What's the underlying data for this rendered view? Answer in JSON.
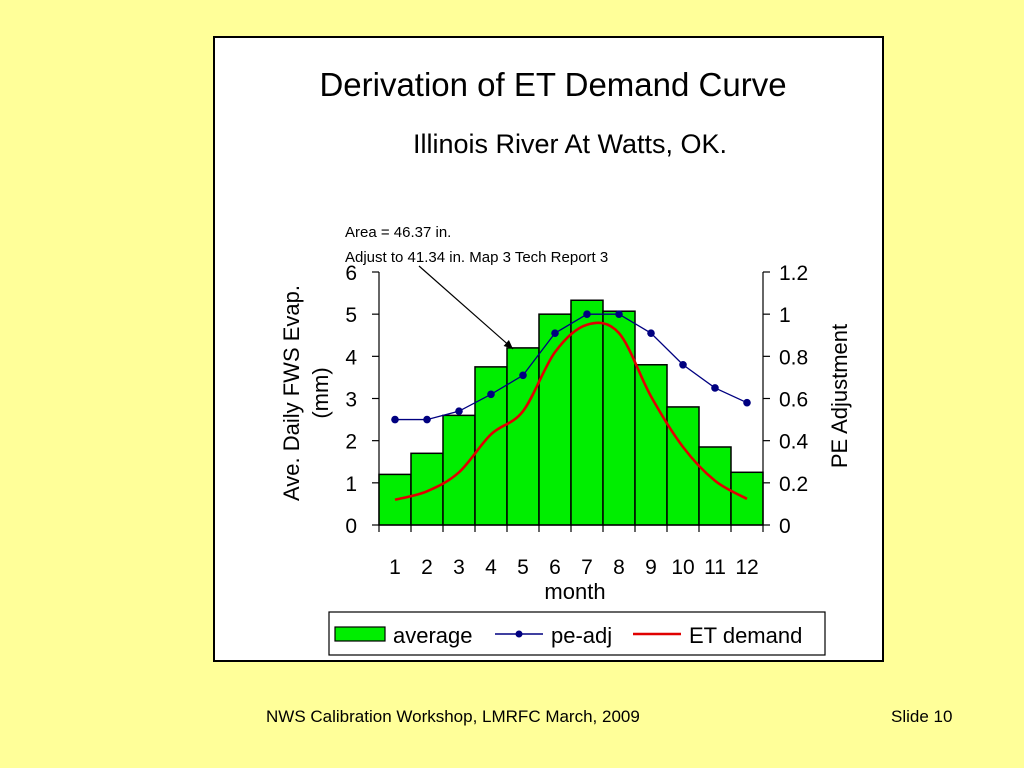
{
  "slide": {
    "footer_left": "NWS Calibration Workshop, LMRFC March, 2009",
    "footer_right": "Slide 10"
  },
  "colors": {
    "background": "#ffff99",
    "bar_fill": "#00ee00",
    "pe_line": "#000080",
    "et_line": "#e00000"
  },
  "chart_data": {
    "type": "bar",
    "title": "Derivation of ET Demand Curve",
    "subtitle": "Illinois River At Watts, OK.",
    "annotation": {
      "line1": "Area = 46.37 in.",
      "line2": "Adjust to 41.34 in. Map 3 Tech Report 3",
      "points_to_month": 5
    },
    "categories": [
      "1",
      "2",
      "3",
      "4",
      "5",
      "6",
      "7",
      "8",
      "9",
      "10",
      "11",
      "12"
    ],
    "xlabel": "month",
    "ylabel_line1": "Ave. Daily FWS Evap.",
    "ylabel_line2": "(mm)",
    "ylabel_right": "PE Adjustment",
    "ylim": [
      0,
      6
    ],
    "yticks": [
      "0",
      "1",
      "2",
      "3",
      "4",
      "5",
      "6"
    ],
    "ylim_right": [
      0,
      1.2
    ],
    "yticks_right": [
      "0",
      "0.2",
      "0.4",
      "0.6",
      "0.8",
      "1",
      "1.2"
    ],
    "series": [
      {
        "name": "average",
        "kind": "bar",
        "axis": "left",
        "values": [
          1.2,
          1.7,
          2.6,
          3.75,
          4.2,
          5.0,
          5.33,
          5.07,
          3.8,
          2.8,
          1.85,
          1.25
        ]
      },
      {
        "name": "pe-adj",
        "kind": "line-marker",
        "axis": "right",
        "values": [
          0.5,
          0.5,
          0.54,
          0.62,
          0.71,
          0.91,
          1.0,
          1.0,
          0.91,
          0.76,
          0.65,
          0.58
        ]
      },
      {
        "name": "ET demand",
        "kind": "line",
        "axis": "left",
        "values": [
          0.6,
          0.8,
          1.25,
          2.15,
          2.7,
          4.1,
          4.75,
          4.55,
          3.05,
          1.85,
          1.05,
          0.62
        ]
      }
    ]
  }
}
